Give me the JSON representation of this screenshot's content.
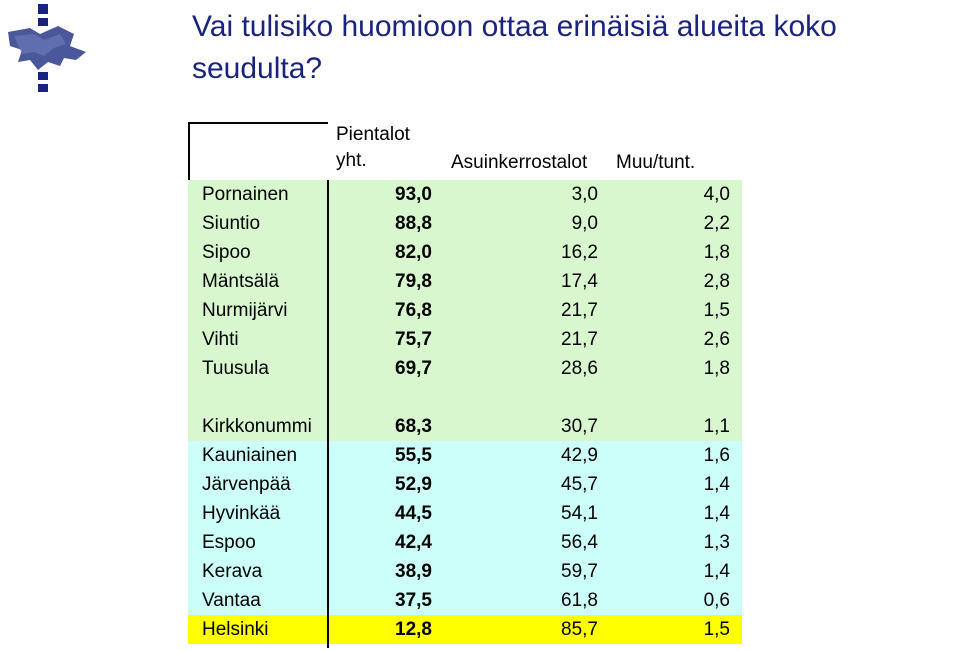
{
  "title": "Vai tulisiko huomioon ottaa erinäisiä alueita koko seudulta?",
  "headers": {
    "pientalot_line1": "Pientalot",
    "pientalot_line2": "yht.",
    "asuinkerrostalot": "Asuinkerrostalot",
    "muu": "Muu/tunt."
  },
  "colors": {
    "title": "#1a237e",
    "green_band": "#d9f7cf",
    "cyan_band": "#ccfff9",
    "highlight": "#ffff00"
  },
  "rows": [
    {
      "name": "Pornainen",
      "pientalot": "93,0",
      "kerrostalot": "3,0",
      "muu": "4,0",
      "band": "green"
    },
    {
      "name": "Siuntio",
      "pientalot": "88,8",
      "kerrostalot": "9,0",
      "muu": "2,2",
      "band": "green"
    },
    {
      "name": "Sipoo",
      "pientalot": "82,0",
      "kerrostalot": "16,2",
      "muu": "1,8",
      "band": "green"
    },
    {
      "name": "Mäntsälä",
      "pientalot": "79,8",
      "kerrostalot": "17,4",
      "muu": "2,8",
      "band": "green"
    },
    {
      "name": "Nurmijärvi",
      "pientalot": "76,8",
      "kerrostalot": "21,7",
      "muu": "1,5",
      "band": "green"
    },
    {
      "name": "Vihti",
      "pientalot": "75,7",
      "kerrostalot": "21,7",
      "muu": "2,6",
      "band": "green"
    },
    {
      "name": "Tuusula",
      "pientalot": "69,7",
      "kerrostalot": "28,6",
      "muu": "1,8",
      "band": "green"
    },
    {
      "name": "",
      "pientalot": "",
      "kerrostalot": "",
      "muu": "",
      "band": "green"
    },
    {
      "name": "Kirkkonummi",
      "pientalot": "68,3",
      "kerrostalot": "30,7",
      "muu": "1,1",
      "band": "green"
    },
    {
      "name": "Kauniainen",
      "pientalot": "55,5",
      "kerrostalot": "42,9",
      "muu": "1,6",
      "band": "cyan"
    },
    {
      "name": "Järvenpää",
      "pientalot": "52,9",
      "kerrostalot": "45,7",
      "muu": "1,4",
      "band": "cyan"
    },
    {
      "name": "Hyvinkää",
      "pientalot": "44,5",
      "kerrostalot": "54,1",
      "muu": "1,4",
      "band": "cyan"
    },
    {
      "name": "Espoo",
      "pientalot": "42,4",
      "kerrostalot": "56,4",
      "muu": "1,3",
      "band": "cyan"
    },
    {
      "name": "Kerava",
      "pientalot": "38,9",
      "kerrostalot": "59,7",
      "muu": "1,4",
      "band": "cyan"
    },
    {
      "name": "Vantaa",
      "pientalot": "37,5",
      "kerrostalot": "61,8",
      "muu": "0,6",
      "band": "cyan"
    },
    {
      "name": "Helsinki",
      "pientalot": "12,8",
      "kerrostalot": "85,7",
      "muu": "1,5",
      "band": "yellow"
    }
  ]
}
